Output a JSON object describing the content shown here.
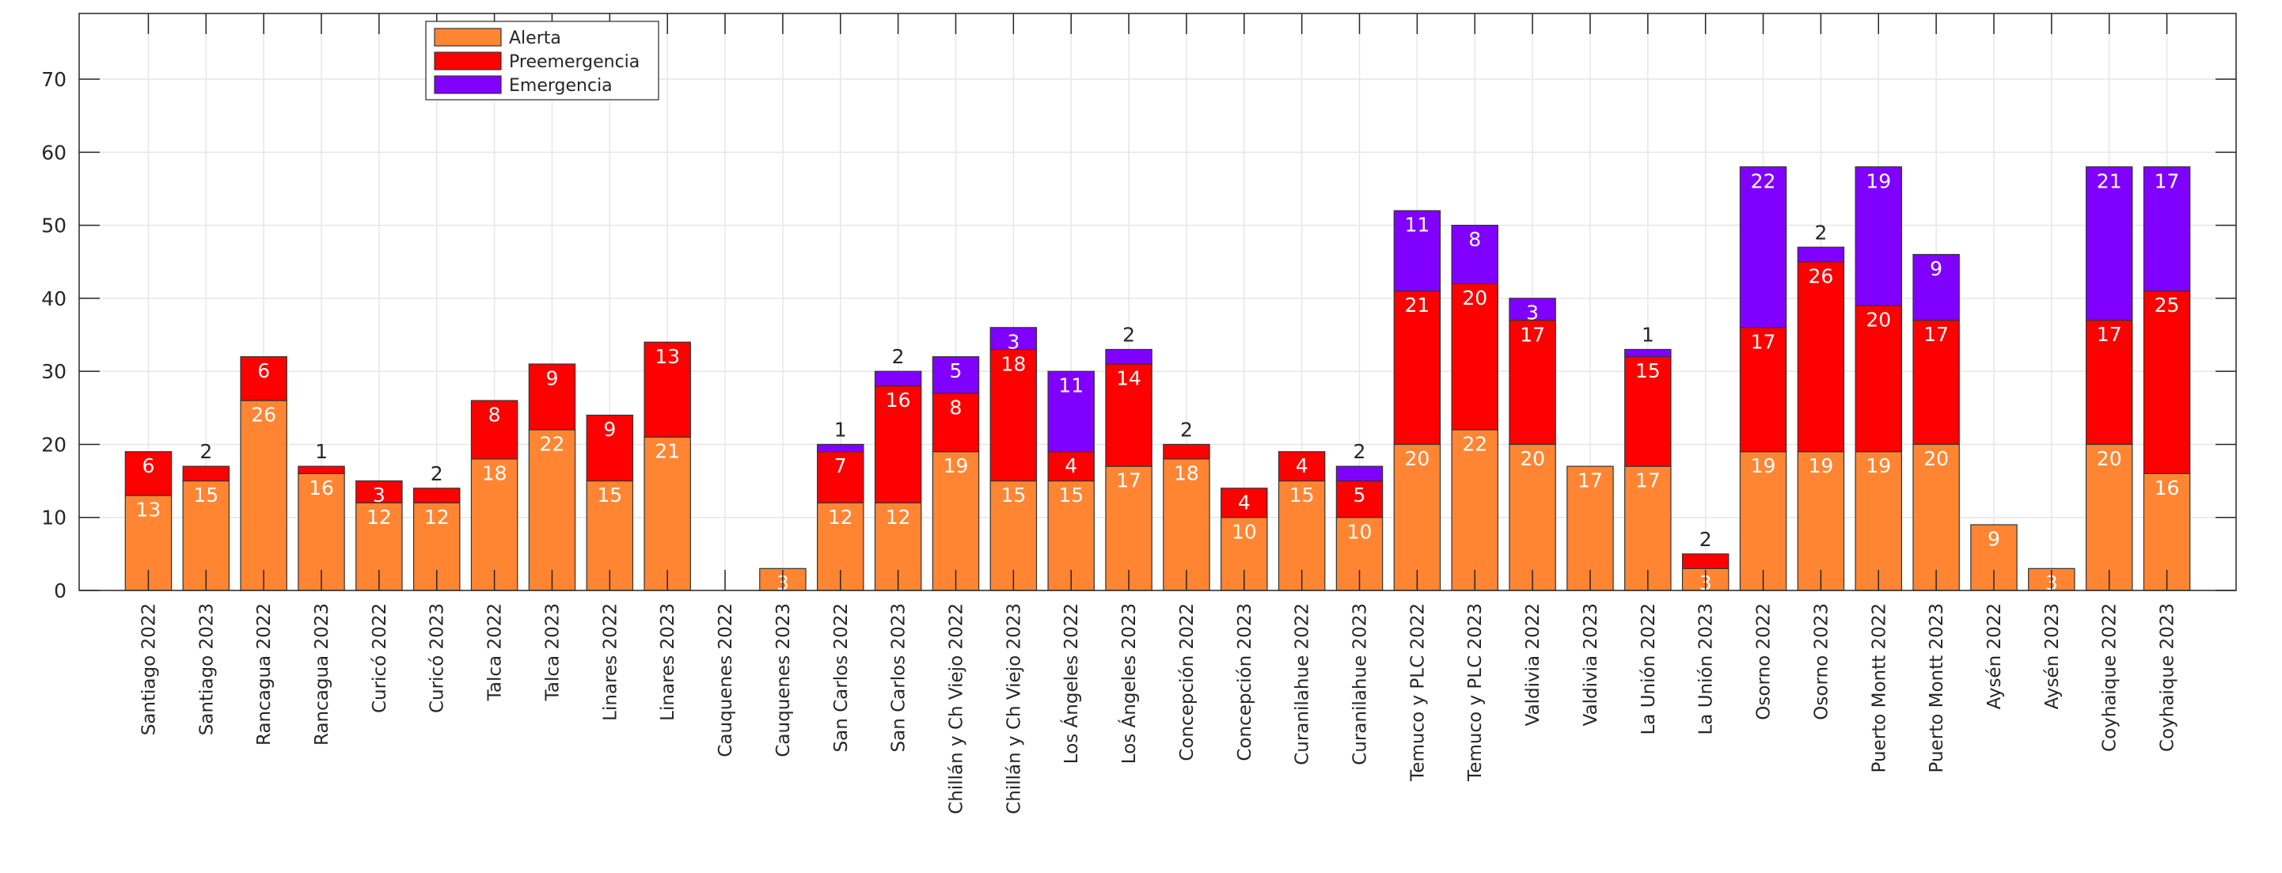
{
  "chart_data": {
    "type": "bar",
    "stacked": true,
    "title": "",
    "xlabel": "",
    "ylabel": "",
    "ylim": [
      0,
      79
    ],
    "xlim": [
      -0.2,
      37.2
    ],
    "yticks": [
      0,
      10,
      20,
      30,
      40,
      50,
      60,
      70
    ],
    "grid": true,
    "legend_position": "top-left",
    "bar_width": 0.8,
    "categories": [
      "Santiago 2022",
      "Santiago 2023",
      "Rancagua 2022",
      "Rancagua 2023",
      "Curicó 2022",
      "Curicó 2023",
      "Talca 2022",
      "Talca 2023",
      "Linares 2022",
      "Linares 2023",
      "Cauquenes 2022",
      "Cauquenes 2023",
      "San Carlos 2022",
      "San Carlos 2023",
      "Chillán y Ch Viejo 2022",
      "Chillán y Ch Viejo 2023",
      "Los Ángeles 2022",
      "Los Ángeles 2023",
      "Concepción 2022",
      "Concepción 2023",
      "Curanilahue 2022",
      "Curanilahue 2023",
      "Temuco y PLC 2022",
      "Temuco y PLC 2023",
      "Valdivia 2022",
      "Valdivia 2023",
      "La Unión 2022",
      "La Unión 2023",
      "Osorno 2022",
      "Osorno 2023",
      "Puerto Montt 2022",
      "Puerto Montt 2023",
      "Aysén 2022",
      "Aysén 2023",
      "Coyhaique 2022",
      "Coyhaique 2023"
    ],
    "series": [
      {
        "name": "Alerta",
        "color": "#FF8533",
        "values": [
          13,
          15,
          26,
          16,
          12,
          12,
          18,
          22,
          15,
          21,
          0,
          3,
          12,
          12,
          19,
          15,
          15,
          17,
          18,
          10,
          15,
          10,
          20,
          22,
          20,
          17,
          17,
          3,
          19,
          19,
          19,
          20,
          9,
          3,
          20,
          16
        ]
      },
      {
        "name": "Preemergencia",
        "color": "#FF0000",
        "values": [
          6,
          2,
          6,
          1,
          3,
          2,
          8,
          9,
          9,
          13,
          0,
          0,
          7,
          16,
          8,
          18,
          4,
          14,
          2,
          4,
          4,
          5,
          21,
          20,
          17,
          0,
          15,
          2,
          17,
          26,
          20,
          17,
          0,
          0,
          17,
          25
        ]
      },
      {
        "name": "Emergencia",
        "color": "#8000FF",
        "values": [
          0,
          0,
          0,
          0,
          0,
          0,
          0,
          0,
          0,
          0,
          0,
          0,
          1,
          2,
          5,
          3,
          11,
          2,
          0,
          0,
          0,
          2,
          11,
          8,
          3,
          0,
          1,
          0,
          22,
          2,
          19,
          9,
          0,
          0,
          21,
          17
        ]
      }
    ]
  }
}
